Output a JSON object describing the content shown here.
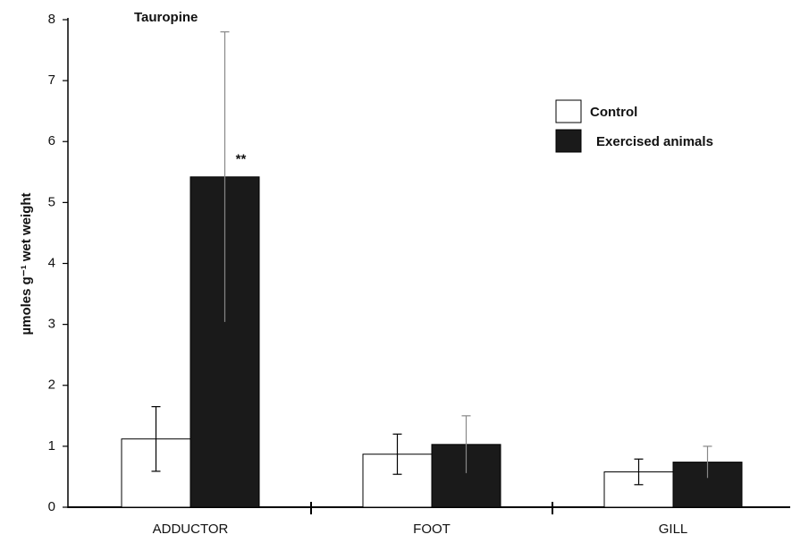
{
  "chart_data": {
    "type": "bar",
    "title": "Tauropine",
    "y_label": "µmoles g⁻¹ wet weight",
    "categories": [
      "ADDUCTOR",
      "FOOT",
      "GILL"
    ],
    "series": [
      {
        "name": "Control",
        "color": "#ffffff",
        "values": [
          1.12,
          0.87,
          0.58
        ],
        "errors": [
          0.53,
          0.33,
          0.21
        ]
      },
      {
        "name": "Exercised animals",
        "color": "#1a1a1a",
        "values": [
          5.42,
          1.03,
          0.74
        ],
        "errors": [
          2.38,
          0.47,
          0.26
        ]
      }
    ],
    "annotations": [
      {
        "text": "**",
        "category": 0,
        "series": 1,
        "y": 5.7
      }
    ],
    "ylim": [
      0,
      8
    ],
    "yticks": [
      0,
      1,
      2,
      3,
      4,
      5,
      6,
      7,
      8
    ],
    "grid": false,
    "legend": "upper right"
  }
}
